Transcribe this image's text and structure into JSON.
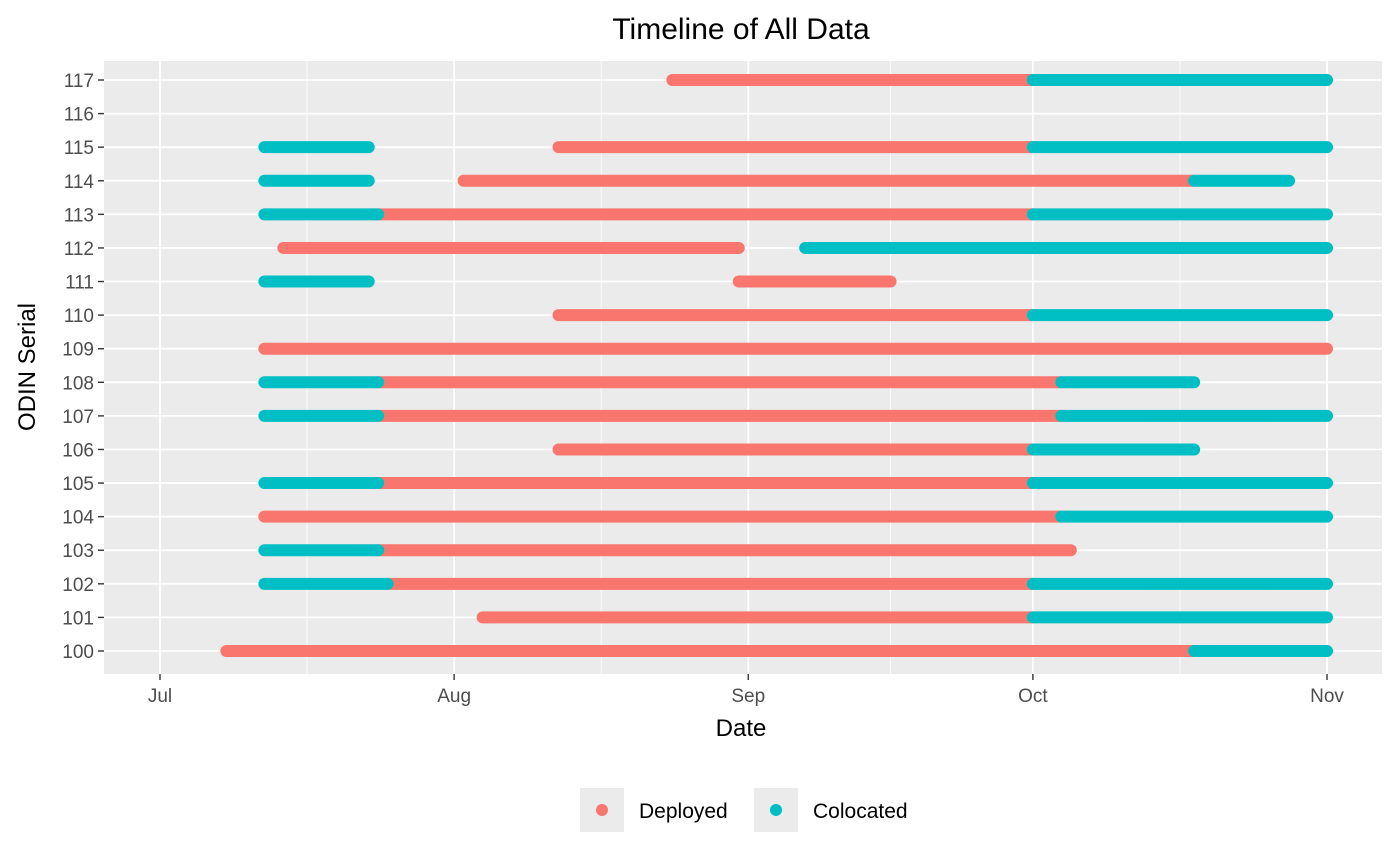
{
  "chart_data": {
    "type": "timeline",
    "title": "Timeline of All Data",
    "xlabel": "Date",
    "ylabel": "ODIN Serial",
    "x_ticks": [
      {
        "label": "Jul",
        "date": "2019-07-01"
      },
      {
        "label": "Aug",
        "date": "2019-08-01"
      },
      {
        "label": "Sep",
        "date": "2019-09-01"
      },
      {
        "label": "Oct",
        "date": "2019-10-01"
      },
      {
        "label": "Nov",
        "date": "2019-11-01"
      }
    ],
    "xlim": [
      "2019-06-25",
      "2019-11-06"
    ],
    "y_categories": [
      "100",
      "101",
      "102",
      "103",
      "104",
      "105",
      "106",
      "107",
      "108",
      "109",
      "110",
      "111",
      "112",
      "113",
      "114",
      "115",
      "116",
      "117"
    ],
    "grid": true,
    "legend_position": "bottom",
    "series": [
      {
        "name": "Deployed",
        "color": "#F8766D",
        "segments": [
          {
            "serial": "100",
            "start": "2019-07-08",
            "end": "2019-10-18"
          },
          {
            "serial": "101",
            "start": "2019-08-04",
            "end": "2019-10-01"
          },
          {
            "serial": "102",
            "start": "2019-07-25",
            "end": "2019-10-01"
          },
          {
            "serial": "103",
            "start": "2019-07-24",
            "end": "2019-10-05"
          },
          {
            "serial": "104",
            "start": "2019-07-12",
            "end": "2019-10-04"
          },
          {
            "serial": "105",
            "start": "2019-07-24",
            "end": "2019-10-01"
          },
          {
            "serial": "106",
            "start": "2019-08-12",
            "end": "2019-10-01"
          },
          {
            "serial": "107",
            "start": "2019-07-24",
            "end": "2019-10-04"
          },
          {
            "serial": "108",
            "start": "2019-07-24",
            "end": "2019-10-04"
          },
          {
            "serial": "109",
            "start": "2019-07-12",
            "end": "2019-11-01"
          },
          {
            "serial": "110",
            "start": "2019-08-12",
            "end": "2019-10-01"
          },
          {
            "serial": "111",
            "start": "2019-08-31",
            "end": "2019-09-16"
          },
          {
            "serial": "112",
            "start": "2019-07-14",
            "end": "2019-08-31"
          },
          {
            "serial": "113",
            "start": "2019-07-24",
            "end": "2019-10-01"
          },
          {
            "serial": "114",
            "start": "2019-08-02",
            "end": "2019-10-18"
          },
          {
            "serial": "115",
            "start": "2019-08-12",
            "end": "2019-10-01"
          },
          {
            "serial": "117",
            "start": "2019-08-24",
            "end": "2019-10-01"
          }
        ]
      },
      {
        "name": "Colocated",
        "color": "#00BFC4",
        "segments": [
          {
            "serial": "100",
            "start": "2019-10-18",
            "end": "2019-11-01"
          },
          {
            "serial": "101",
            "start": "2019-10-01",
            "end": "2019-11-01"
          },
          {
            "serial": "102",
            "start": "2019-07-12",
            "end": "2019-07-25"
          },
          {
            "serial": "102",
            "start": "2019-10-01",
            "end": "2019-11-01"
          },
          {
            "serial": "103",
            "start": "2019-07-12",
            "end": "2019-07-24"
          },
          {
            "serial": "104",
            "start": "2019-10-04",
            "end": "2019-11-01"
          },
          {
            "serial": "105",
            "start": "2019-07-12",
            "end": "2019-07-24"
          },
          {
            "serial": "105",
            "start": "2019-10-01",
            "end": "2019-11-01"
          },
          {
            "serial": "106",
            "start": "2019-10-01",
            "end": "2019-10-18"
          },
          {
            "serial": "107",
            "start": "2019-07-12",
            "end": "2019-07-24"
          },
          {
            "serial": "107",
            "start": "2019-10-04",
            "end": "2019-11-01"
          },
          {
            "serial": "108",
            "start": "2019-07-12",
            "end": "2019-07-24"
          },
          {
            "serial": "108",
            "start": "2019-10-04",
            "end": "2019-10-18"
          },
          {
            "serial": "110",
            "start": "2019-10-01",
            "end": "2019-11-01"
          },
          {
            "serial": "111",
            "start": "2019-07-12",
            "end": "2019-07-23"
          },
          {
            "serial": "112",
            "start": "2019-09-07",
            "end": "2019-11-01"
          },
          {
            "serial": "113",
            "start": "2019-07-12",
            "end": "2019-07-24"
          },
          {
            "serial": "113",
            "start": "2019-10-01",
            "end": "2019-11-01"
          },
          {
            "serial": "114",
            "start": "2019-07-12",
            "end": "2019-07-23"
          },
          {
            "serial": "114",
            "start": "2019-10-18",
            "end": "2019-10-28"
          },
          {
            "serial": "115",
            "start": "2019-07-12",
            "end": "2019-07-23"
          },
          {
            "serial": "115",
            "start": "2019-10-01",
            "end": "2019-11-01"
          },
          {
            "serial": "117",
            "start": "2019-10-01",
            "end": "2019-11-01"
          }
        ]
      }
    ]
  }
}
